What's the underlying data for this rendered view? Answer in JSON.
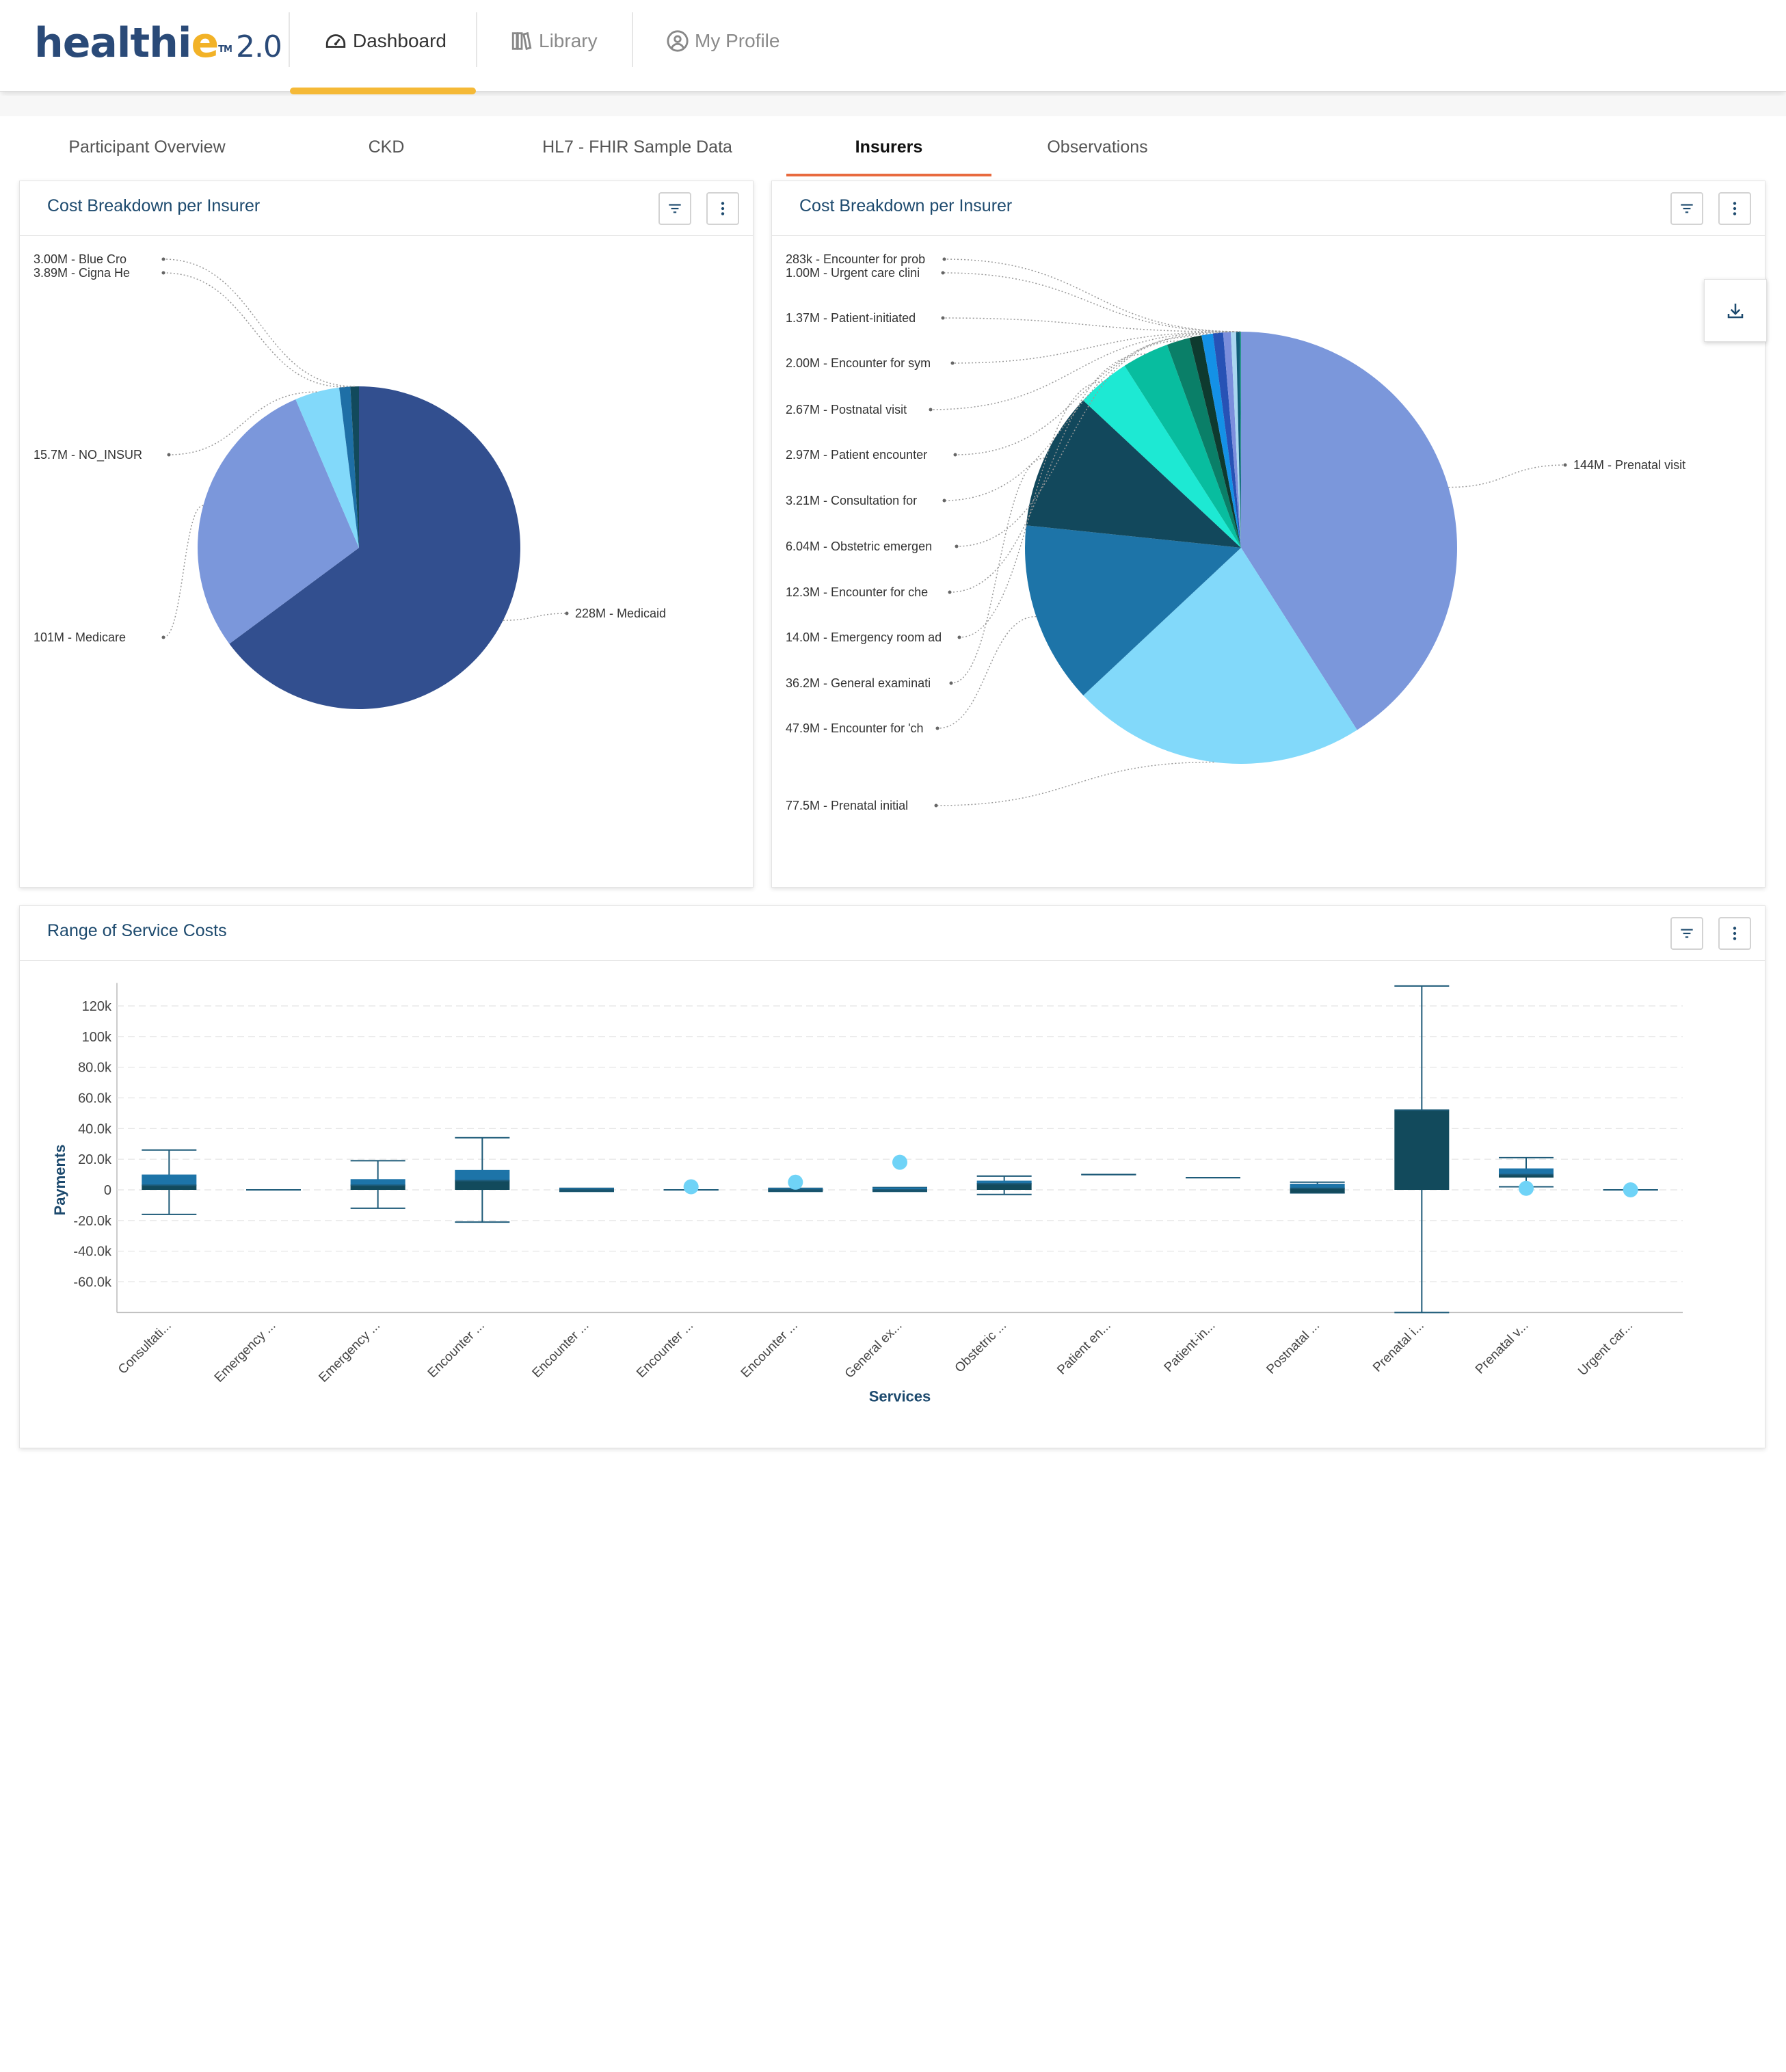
{
  "app": {
    "logo_part1": "healthi",
    "logo_part2": "e",
    "logo_tm": "TM",
    "logo_version": "2.0"
  },
  "nav": {
    "tabs": [
      {
        "label": "Dashboard",
        "icon": "gauge-icon",
        "active": true
      },
      {
        "label": "Library",
        "icon": "books-icon",
        "active": false
      },
      {
        "label": "My Profile",
        "icon": "user-circle-icon",
        "active": false
      }
    ]
  },
  "subtabs": [
    {
      "label": "Participant Overview",
      "active": false
    },
    {
      "label": "CKD",
      "active": false
    },
    {
      "label": "HL7 - FHIR Sample Data",
      "active": false
    },
    {
      "label": "Insurers",
      "active": true
    },
    {
      "label": "Observations",
      "active": false
    }
  ],
  "colors": {
    "accent_orange": "#e86a3e",
    "nav_underline": "#f5b937",
    "title_blue": "#1d4a6e"
  },
  "card_left": {
    "title": "Cost Breakdown per Insurer",
    "filter_icon": "filter-icon",
    "menu_icon": "more-vertical-icon"
  },
  "card_right": {
    "title": "Cost Breakdown per Insurer",
    "filter_icon": "filter-icon",
    "menu_icon": "more-vertical-icon",
    "download_icon": "download-icon"
  },
  "card_bottom": {
    "title": "Range of Service Costs",
    "filter_icon": "filter-icon",
    "menu_icon": "more-vertical-icon"
  },
  "chart_data": [
    {
      "type": "pie",
      "title": "Cost Breakdown per Insurer",
      "slices": [
        {
          "label": "228M - Medicaid",
          "value": 228,
          "color": "#324f8f"
        },
        {
          "label": "101M - Medicare",
          "value": 101,
          "color": "#7b97db"
        },
        {
          "label": "15.7M - NO_INSUR",
          "value": 15.7,
          "color": "#82d9fa"
        },
        {
          "label": "3.89M - Cigna He",
          "value": 3.89,
          "color": "#1e6fa6"
        },
        {
          "label": "3.00M - Blue Cro",
          "value": 3.0,
          "color": "#124a5c"
        }
      ]
    },
    {
      "type": "pie",
      "title": "Cost Breakdown per Insurer",
      "slices": [
        {
          "label": "144M - Prenatal visit",
          "value": 144,
          "color": "#7b97db"
        },
        {
          "label": "77.5M - Prenatal initial",
          "value": 77.5,
          "color": "#82d9fa"
        },
        {
          "label": "47.9M - Encounter for 'ch",
          "value": 47.9,
          "color": "#1d74a8"
        },
        {
          "label": "36.2M - General examinati",
          "value": 36.2,
          "color": "#12485c"
        },
        {
          "label": "14.0M - Emergency room ad",
          "value": 14.0,
          "color": "#1de9d3"
        },
        {
          "label": "12.3M - Encounter for che",
          "value": 12.3,
          "color": "#08bd9f"
        },
        {
          "label": "6.04M - Obstetric emergen",
          "value": 6.04,
          "color": "#0a7f68"
        },
        {
          "label": "3.21M - Consultation for",
          "value": 3.21,
          "color": "#0e3a2f"
        },
        {
          "label": "2.97M - Patient encounter",
          "value": 2.97,
          "color": "#1491e6"
        },
        {
          "label": "2.67M - Postnatal visit",
          "value": 2.67,
          "color": "#2752b5"
        },
        {
          "label": "2.00M - Encounter for sym",
          "value": 2.0,
          "color": "#7b8edc"
        },
        {
          "label": "1.37M - Patient-initiated",
          "value": 1.37,
          "color": "#a9d6f0"
        },
        {
          "label": "1.00M - Urgent care clini",
          "value": 1.0,
          "color": "#0f5c78"
        },
        {
          "label": "283k - Encounter for prob",
          "value": 0.283,
          "color": "#2a9b8e"
        }
      ]
    },
    {
      "type": "boxplot",
      "title": "Range of Service Costs",
      "xlabel": "Services",
      "ylabel": "Payments",
      "ylim": [
        -80000,
        135000
      ],
      "yticks": [
        "120k",
        "100k",
        "80.0k",
        "60.0k",
        "40.0k",
        "20.0k",
        "0",
        "-20.0k",
        "-40.0k",
        "-60.0k"
      ],
      "ytick_values": [
        120000,
        100000,
        80000,
        60000,
        40000,
        20000,
        0,
        -20000,
        -40000,
        -60000
      ],
      "categories": [
        "Consultati...",
        "Emergency ...",
        "Emergency ...",
        "Encounter ...",
        "Encounter ...",
        "Encounter ...",
        "Encounter ...",
        "General ex...",
        "Obstetric ...",
        "Patient en...",
        "Patient-in...",
        "Postnatal ...",
        "Prenatal i...",
        "Prenatal v...",
        "Urgent car..."
      ],
      "boxes": [
        {
          "min": -16000,
          "q1": 0,
          "median": 3000,
          "q3": 10000,
          "max": 26000,
          "outliers": []
        },
        {
          "min": 0,
          "q1": 0,
          "median": 0,
          "q3": 0,
          "max": 0,
          "outliers": []
        },
        {
          "min": -12000,
          "q1": 0,
          "median": 3000,
          "q3": 7000,
          "max": 19000,
          "outliers": []
        },
        {
          "min": -21000,
          "q1": 0,
          "median": 6000,
          "q3": 13000,
          "max": 34000,
          "outliers": []
        },
        {
          "min": -1000,
          "q1": -1000,
          "median": 0,
          "q3": 1000,
          "max": 1000,
          "outliers": []
        },
        {
          "min": 0,
          "q1": 0,
          "median": 0,
          "q3": 0,
          "max": 0,
          "outliers": [
            2000
          ]
        },
        {
          "min": -1000,
          "q1": -1000,
          "median": 0,
          "q3": 1000,
          "max": 1000,
          "outliers": [
            5000
          ]
        },
        {
          "min": -1000,
          "q1": -1000,
          "median": 0,
          "q3": 1500,
          "max": 1500,
          "outliers": [
            18000
          ]
        },
        {
          "min": -3000,
          "q1": 0,
          "median": 4000,
          "q3": 6000,
          "max": 9000,
          "outliers": []
        },
        {
          "min": 10000,
          "q1": 10000,
          "median": 10000,
          "q3": 10000,
          "max": 10000,
          "outliers": []
        },
        {
          "min": 8000,
          "q1": 8000,
          "median": 8000,
          "q3": 8000,
          "max": 8000,
          "outliers": []
        },
        {
          "min": -2000,
          "q1": -2000,
          "median": 1000,
          "q3": 4000,
          "max": 5000,
          "outliers": []
        },
        {
          "min": -80000,
          "q1": 0,
          "median": 52000,
          "q3": 52000,
          "max": 133000,
          "outliers": []
        },
        {
          "min": 2000,
          "q1": 8000,
          "median": 10000,
          "q3": 14000,
          "max": 21000,
          "outliers": [
            1000
          ]
        },
        {
          "min": 0,
          "q1": 0,
          "median": 0,
          "q3": 0,
          "max": 0,
          "outliers": [
            0
          ]
        }
      ]
    }
  ]
}
